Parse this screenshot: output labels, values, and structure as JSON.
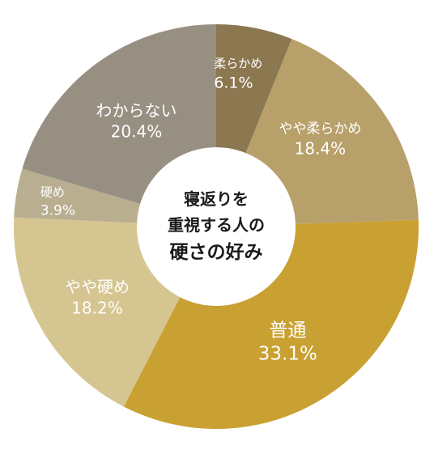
{
  "chart_data": {
    "type": "pie",
    "style": "donut",
    "title_lines": [
      "寝返りを",
      "重視する人の",
      "硬さの好み"
    ],
    "unit": "%",
    "slices": [
      {
        "label": "柔らかめ",
        "value": 6.1,
        "value_text": "6.1%",
        "color": "#8c7850"
      },
      {
        "label": "やや柔らかめ",
        "value": 18.4,
        "value_text": "18.4%",
        "color": "#b8a06a"
      },
      {
        "label": "普通",
        "value": 33.1,
        "value_text": "33.1%",
        "color": "#c9a032"
      },
      {
        "label": "やや硬め",
        "value": 18.2,
        "value_text": "18.2%",
        "color": "#d5c590"
      },
      {
        "label": "硬め",
        "value": 3.9,
        "value_text": "3.9%",
        "color": "#b9ae90"
      },
      {
        "label": "わからない",
        "value": 20.4,
        "value_text": "20.4%",
        "color": "#979082"
      }
    ],
    "start_angle_deg": 0,
    "direction": "clockwise",
    "background_color": "#ffffff"
  }
}
